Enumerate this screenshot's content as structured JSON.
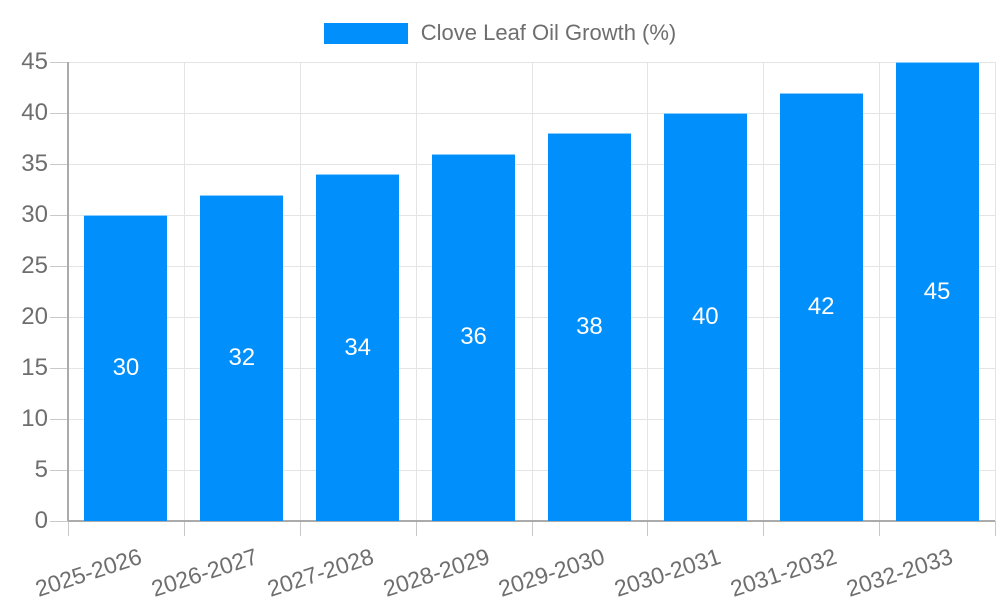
{
  "legend": {
    "label": "Clove Leaf Oil Growth (%)",
    "swatch_color": "#008FFB"
  },
  "chart_data": {
    "type": "bar",
    "title": "",
    "categories": [
      "2025-2026",
      "2026-2027",
      "2027-2028",
      "2028-2029",
      "2029-2030",
      "2030-2031",
      "2031-2032",
      "2032-2033"
    ],
    "series": [
      {
        "name": "Clove Leaf Oil Growth (%)",
        "values": [
          30,
          32,
          34,
          36,
          38,
          40,
          42,
          45
        ]
      }
    ],
    "data_labels": [
      "30",
      "32",
      "34",
      "36",
      "38",
      "40",
      "42",
      "45"
    ],
    "xlabel": "",
    "ylabel": "",
    "ylim": [
      0,
      45
    ],
    "yticks": [
      0,
      5,
      10,
      15,
      20,
      25,
      30,
      35,
      40,
      45
    ],
    "grid": true,
    "legend_position": "top",
    "x_label_rotation_deg": -18,
    "colors": {
      "bar": "#008FFB",
      "grid_line": "#e4e4e4",
      "tick": "#c9c9c9",
      "axis_line": "#ababab",
      "axis_label": "#6e6e6e",
      "data_label": "#ffffff"
    }
  }
}
